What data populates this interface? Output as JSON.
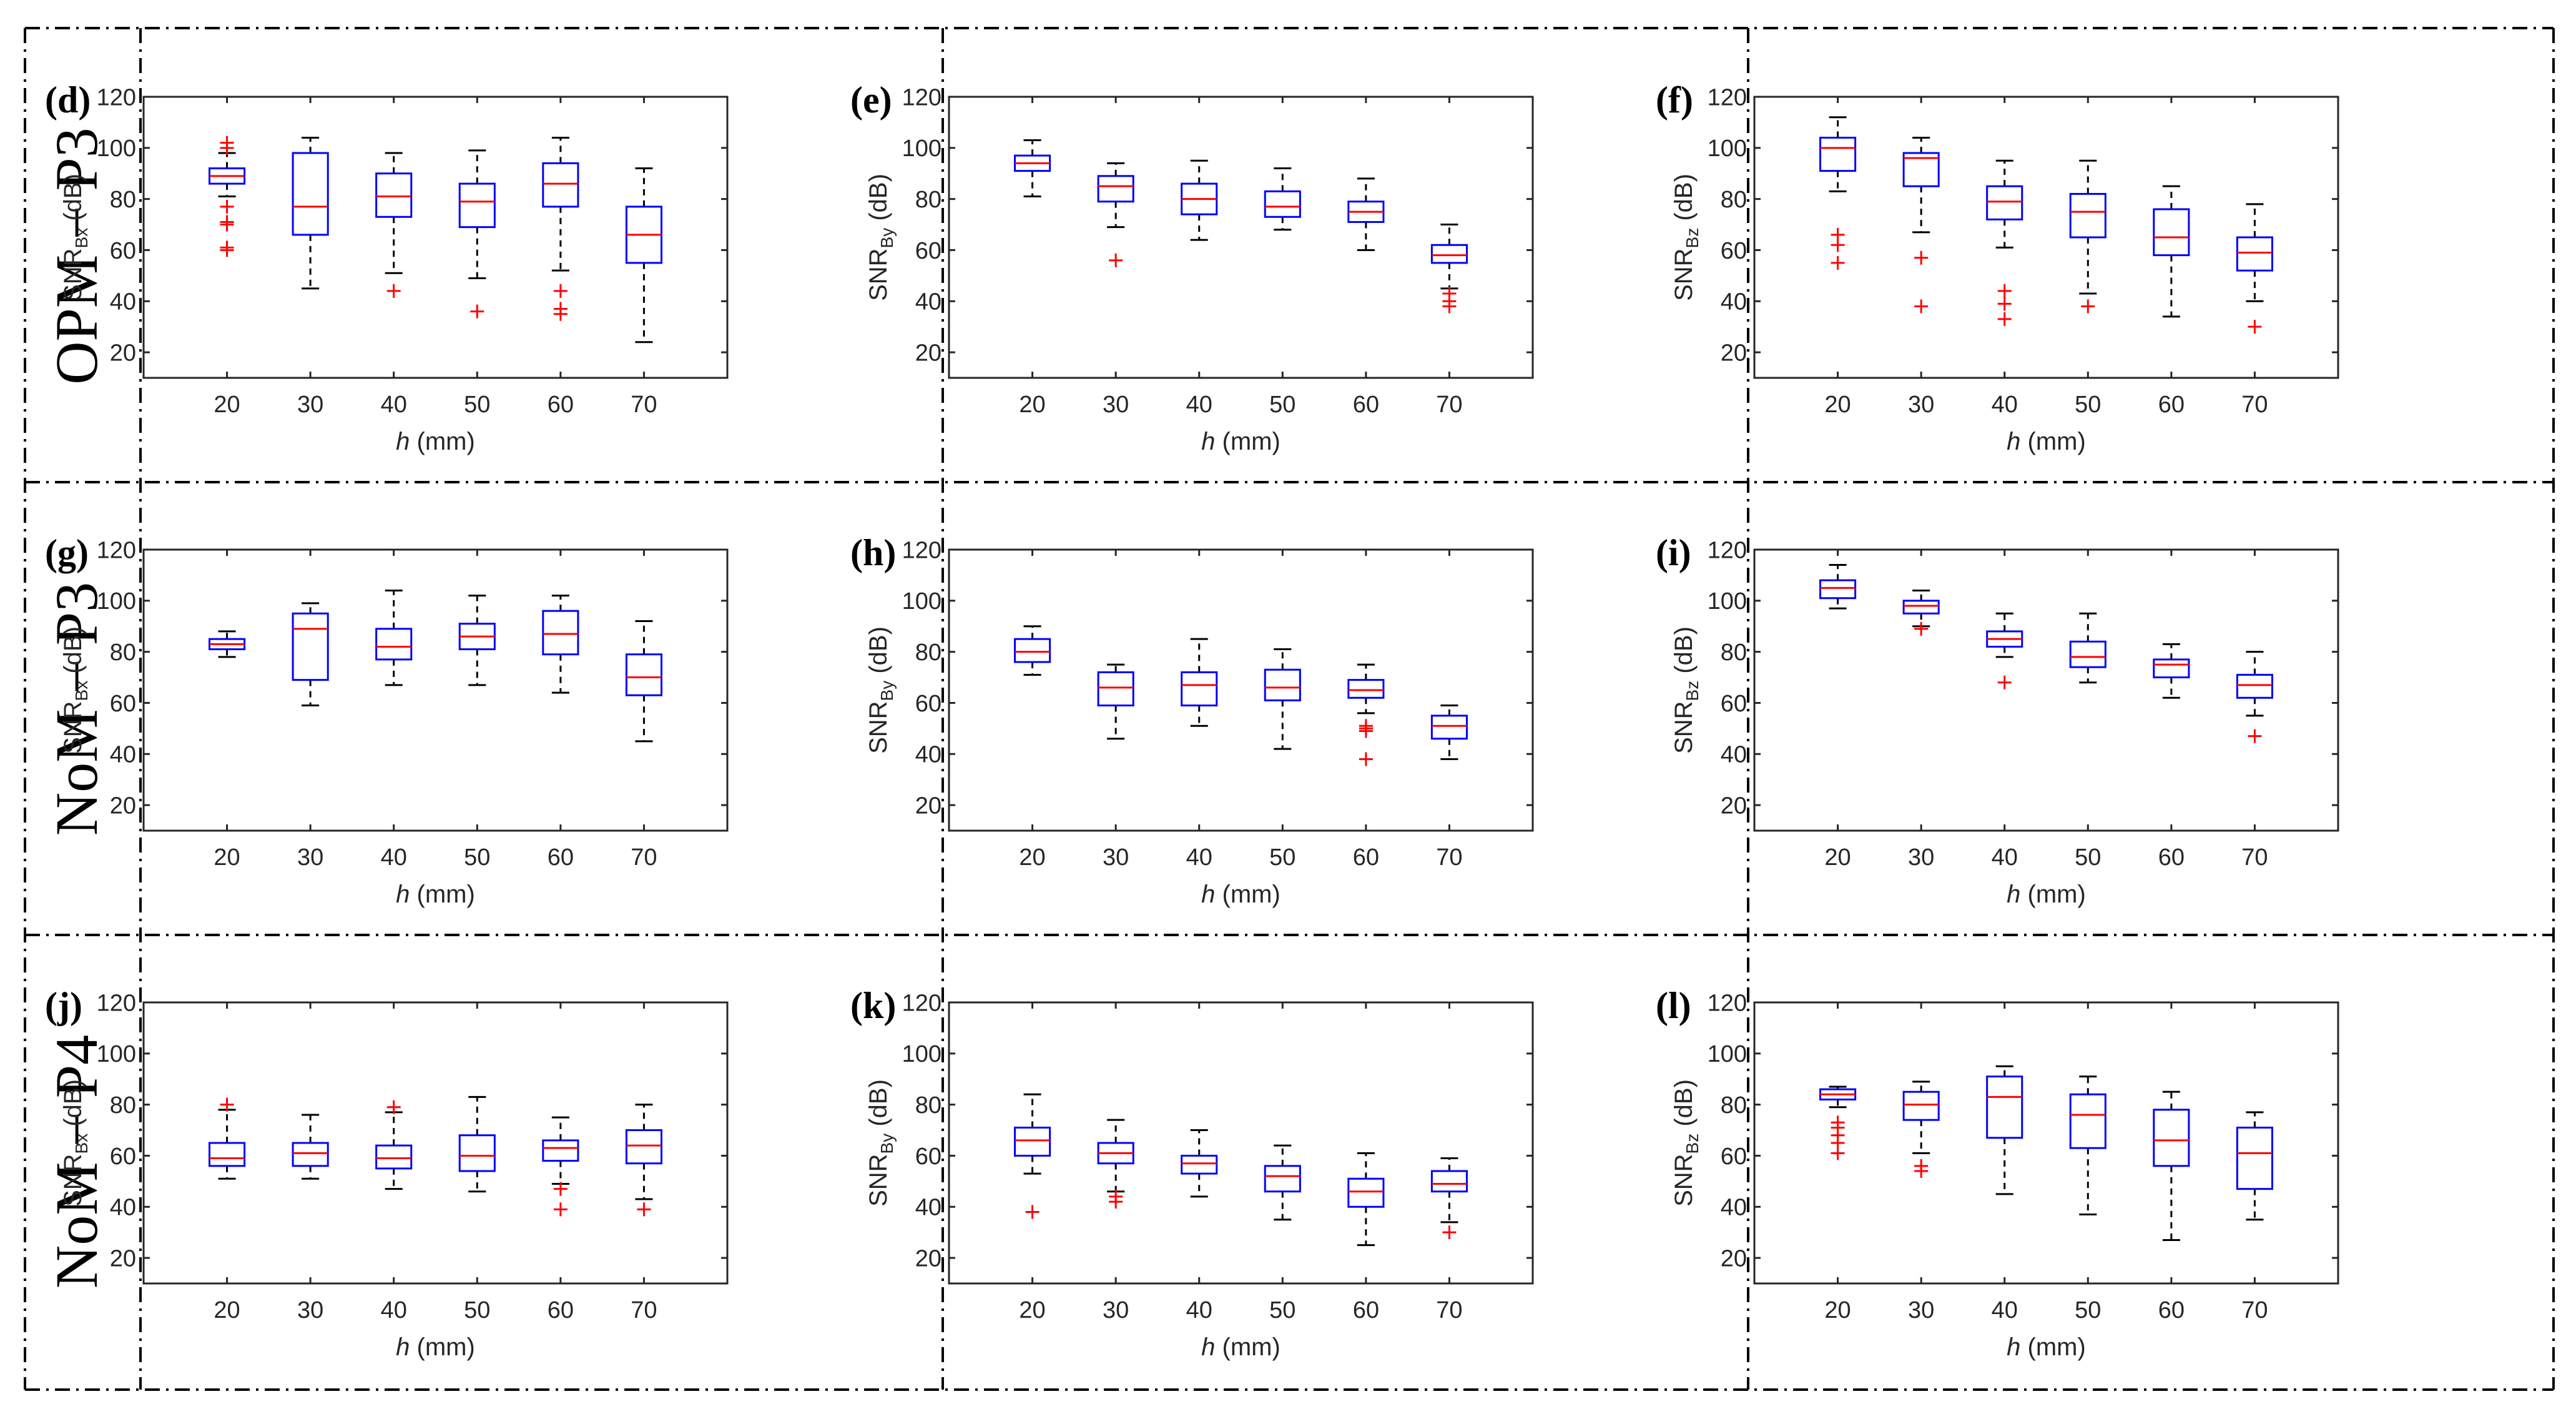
{
  "figure": {
    "rows": [
      {
        "label": "OPM − P3",
        "panels": [
          "d",
          "e",
          "f"
        ]
      },
      {
        "label": "NoM − P3",
        "panels": [
          "g",
          "h",
          "i"
        ]
      },
      {
        "label": "NoM − P4",
        "panels": [
          "j",
          "k",
          "l"
        ]
      }
    ],
    "colors": {
      "box": "#0000ff",
      "median": "#ff0000",
      "outlier": "#ff0000",
      "whisker": "#000000",
      "axis": "#262626",
      "frame": "#000000"
    }
  },
  "chart_data": [
    {
      "id": "d",
      "letter": "(d)",
      "type": "box",
      "ylabel_base": "SNR",
      "ylabel_sub": "Bx",
      "ylabel_unit": "(dB)",
      "xlabel_italic": "h",
      "xlabel_unit": "(mm)",
      "categories": [
        "20",
        "30",
        "40",
        "50",
        "60",
        "70"
      ],
      "ylim": [
        10,
        120
      ],
      "yticks": [
        20,
        40,
        60,
        80,
        100,
        120
      ],
      "boxes": [
        {
          "q1": 86,
          "median": 89,
          "q3": 92,
          "whisker_low": 81,
          "whisker_high": 98,
          "outliers": [
            60,
            61,
            70,
            71,
            77,
            100,
            102
          ]
        },
        {
          "q1": 66,
          "median": 77,
          "q3": 98,
          "whisker_low": 45,
          "whisker_high": 104,
          "outliers": []
        },
        {
          "q1": 73,
          "median": 81,
          "q3": 90,
          "whisker_low": 51,
          "whisker_high": 98,
          "outliers": [
            44
          ]
        },
        {
          "q1": 69,
          "median": 79,
          "q3": 86,
          "whisker_low": 49,
          "whisker_high": 99,
          "outliers": [
            36
          ]
        },
        {
          "q1": 77,
          "median": 86,
          "q3": 94,
          "whisker_low": 52,
          "whisker_high": 104,
          "outliers": [
            35,
            37,
            44
          ]
        },
        {
          "q1": 55,
          "median": 66,
          "q3": 77,
          "whisker_low": 24,
          "whisker_high": 92,
          "outliers": []
        }
      ]
    },
    {
      "id": "e",
      "letter": "(e)",
      "type": "box",
      "ylabel_base": "SNR",
      "ylabel_sub": "By",
      "ylabel_unit": "(dB)",
      "xlabel_italic": "h",
      "xlabel_unit": "(mm)",
      "categories": [
        "20",
        "30",
        "40",
        "50",
        "60",
        "70"
      ],
      "ylim": [
        10,
        120
      ],
      "yticks": [
        20,
        40,
        60,
        80,
        100,
        120
      ],
      "boxes": [
        {
          "q1": 91,
          "median": 94,
          "q3": 97,
          "whisker_low": 81,
          "whisker_high": 103,
          "outliers": []
        },
        {
          "q1": 79,
          "median": 85,
          "q3": 89,
          "whisker_low": 69,
          "whisker_high": 94,
          "outliers": [
            56
          ]
        },
        {
          "q1": 74,
          "median": 80,
          "q3": 86,
          "whisker_low": 64,
          "whisker_high": 95,
          "outliers": []
        },
        {
          "q1": 73,
          "median": 77,
          "q3": 83,
          "whisker_low": 68,
          "whisker_high": 92,
          "outliers": []
        },
        {
          "q1": 71,
          "median": 75,
          "q3": 79,
          "whisker_low": 60,
          "whisker_high": 88,
          "outliers": []
        },
        {
          "q1": 55,
          "median": 58,
          "q3": 62,
          "whisker_low": 45,
          "whisker_high": 70,
          "outliers": [
            38,
            40,
            43
          ]
        }
      ]
    },
    {
      "id": "f",
      "letter": "(f)",
      "type": "box",
      "ylabel_base": "SNR",
      "ylabel_sub": "Bz",
      "ylabel_unit": "(dB)",
      "xlabel_italic": "h",
      "xlabel_unit": "(mm)",
      "categories": [
        "20",
        "30",
        "40",
        "50",
        "60",
        "70"
      ],
      "ylim": [
        10,
        120
      ],
      "yticks": [
        20,
        40,
        60,
        80,
        100,
        120
      ],
      "boxes": [
        {
          "q1": 91,
          "median": 100,
          "q3": 104,
          "whisker_low": 83,
          "whisker_high": 112,
          "outliers": [
            55,
            62,
            66
          ]
        },
        {
          "q1": 85,
          "median": 96,
          "q3": 98,
          "whisker_low": 67,
          "whisker_high": 104,
          "outliers": [
            38,
            57
          ]
        },
        {
          "q1": 72,
          "median": 79,
          "q3": 85,
          "whisker_low": 61,
          "whisker_high": 95,
          "outliers": [
            33,
            39,
            44
          ]
        },
        {
          "q1": 65,
          "median": 75,
          "q3": 82,
          "whisker_low": 43,
          "whisker_high": 95,
          "outliers": [
            38
          ]
        },
        {
          "q1": 58,
          "median": 65,
          "q3": 76,
          "whisker_low": 34,
          "whisker_high": 85,
          "outliers": []
        },
        {
          "q1": 52,
          "median": 59,
          "q3": 65,
          "whisker_low": 40,
          "whisker_high": 78,
          "outliers": [
            30
          ]
        }
      ]
    },
    {
      "id": "g",
      "letter": "(g)",
      "type": "box",
      "ylabel_base": "SNR",
      "ylabel_sub": "Bx",
      "ylabel_unit": "(dB)",
      "xlabel_italic": "h",
      "xlabel_unit": "(mm)",
      "categories": [
        "20",
        "30",
        "40",
        "50",
        "60",
        "70"
      ],
      "ylim": [
        10,
        120
      ],
      "yticks": [
        20,
        40,
        60,
        80,
        100,
        120
      ],
      "boxes": [
        {
          "q1": 81,
          "median": 83,
          "q3": 85,
          "whisker_low": 78,
          "whisker_high": 88,
          "outliers": []
        },
        {
          "q1": 69,
          "median": 89,
          "q3": 95,
          "whisker_low": 59,
          "whisker_high": 99,
          "outliers": []
        },
        {
          "q1": 77,
          "median": 82,
          "q3": 89,
          "whisker_low": 67,
          "whisker_high": 104,
          "outliers": []
        },
        {
          "q1": 81,
          "median": 86,
          "q3": 91,
          "whisker_low": 67,
          "whisker_high": 102,
          "outliers": []
        },
        {
          "q1": 79,
          "median": 87,
          "q3": 96,
          "whisker_low": 64,
          "whisker_high": 102,
          "outliers": []
        },
        {
          "q1": 63,
          "median": 70,
          "q3": 79,
          "whisker_low": 45,
          "whisker_high": 92,
          "outliers": []
        }
      ]
    },
    {
      "id": "h",
      "letter": "(h)",
      "type": "box",
      "ylabel_base": "SNR",
      "ylabel_sub": "By",
      "ylabel_unit": "(dB)",
      "xlabel_italic": "h",
      "xlabel_unit": "(mm)",
      "categories": [
        "20",
        "30",
        "40",
        "50",
        "60",
        "70"
      ],
      "ylim": [
        10,
        120
      ],
      "yticks": [
        20,
        40,
        60,
        80,
        100,
        120
      ],
      "boxes": [
        {
          "q1": 76,
          "median": 80,
          "q3": 85,
          "whisker_low": 71,
          "whisker_high": 90,
          "outliers": []
        },
        {
          "q1": 59,
          "median": 66,
          "q3": 72,
          "whisker_low": 46,
          "whisker_high": 75,
          "outliers": []
        },
        {
          "q1": 59,
          "median": 67,
          "q3": 72,
          "whisker_low": 51,
          "whisker_high": 85,
          "outliers": []
        },
        {
          "q1": 61,
          "median": 66,
          "q3": 73,
          "whisker_low": 42,
          "whisker_high": 81,
          "outliers": []
        },
        {
          "q1": 62,
          "median": 65,
          "q3": 69,
          "whisker_low": 56,
          "whisker_high": 75,
          "outliers": [
            38,
            49,
            50,
            51
          ]
        },
        {
          "q1": 46,
          "median": 51,
          "q3": 55,
          "whisker_low": 38,
          "whisker_high": 59,
          "outliers": []
        }
      ]
    },
    {
      "id": "i",
      "letter": "(i)",
      "type": "box",
      "ylabel_base": "SNR",
      "ylabel_sub": "Bz",
      "ylabel_unit": "(dB)",
      "xlabel_italic": "h",
      "xlabel_unit": "(mm)",
      "categories": [
        "20",
        "30",
        "40",
        "50",
        "60",
        "70"
      ],
      "ylim": [
        10,
        120
      ],
      "yticks": [
        20,
        40,
        60,
        80,
        100,
        120
      ],
      "boxes": [
        {
          "q1": 101,
          "median": 105,
          "q3": 108,
          "whisker_low": 97,
          "whisker_high": 114,
          "outliers": []
        },
        {
          "q1": 95,
          "median": 98,
          "q3": 100,
          "whisker_low": 90,
          "whisker_high": 104,
          "outliers": [
            89
          ]
        },
        {
          "q1": 82,
          "median": 85,
          "q3": 88,
          "whisker_low": 78,
          "whisker_high": 95,
          "outliers": [
            68
          ]
        },
        {
          "q1": 74,
          "median": 78,
          "q3": 84,
          "whisker_low": 68,
          "whisker_high": 95,
          "outliers": []
        },
        {
          "q1": 70,
          "median": 75,
          "q3": 77,
          "whisker_low": 62,
          "whisker_high": 83,
          "outliers": []
        },
        {
          "q1": 62,
          "median": 67,
          "q3": 71,
          "whisker_low": 55,
          "whisker_high": 80,
          "outliers": [
            47
          ]
        }
      ]
    },
    {
      "id": "j",
      "letter": "(j)",
      "type": "box",
      "ylabel_base": "SNR",
      "ylabel_sub": "Bx",
      "ylabel_unit": "(dB)",
      "xlabel_italic": "h",
      "xlabel_unit": "(mm)",
      "categories": [
        "20",
        "30",
        "40",
        "50",
        "60",
        "70"
      ],
      "ylim": [
        10,
        120
      ],
      "yticks": [
        20,
        40,
        60,
        80,
        100,
        120
      ],
      "boxes": [
        {
          "q1": 56,
          "median": 59,
          "q3": 65,
          "whisker_low": 51,
          "whisker_high": 78,
          "outliers": [
            80
          ]
        },
        {
          "q1": 56,
          "median": 61,
          "q3": 65,
          "whisker_low": 51,
          "whisker_high": 76,
          "outliers": []
        },
        {
          "q1": 55,
          "median": 59,
          "q3": 64,
          "whisker_low": 47,
          "whisker_high": 77,
          "outliers": [
            79
          ]
        },
        {
          "q1": 54,
          "median": 60,
          "q3": 68,
          "whisker_low": 46,
          "whisker_high": 83,
          "outliers": []
        },
        {
          "q1": 58,
          "median": 63,
          "q3": 66,
          "whisker_low": 49,
          "whisker_high": 75,
          "outliers": [
            39,
            47
          ]
        },
        {
          "q1": 57,
          "median": 64,
          "q3": 70,
          "whisker_low": 43,
          "whisker_high": 80,
          "outliers": [
            39
          ]
        }
      ]
    },
    {
      "id": "k",
      "letter": "(k)",
      "type": "box",
      "ylabel_base": "SNR",
      "ylabel_sub": "By",
      "ylabel_unit": "(dB)",
      "xlabel_italic": "h",
      "xlabel_unit": "(mm)",
      "categories": [
        "20",
        "30",
        "40",
        "50",
        "60",
        "70"
      ],
      "ylim": [
        10,
        120
      ],
      "yticks": [
        20,
        40,
        60,
        80,
        100,
        120
      ],
      "boxes": [
        {
          "q1": 60,
          "median": 66,
          "q3": 71,
          "whisker_low": 53,
          "whisker_high": 84,
          "outliers": [
            38
          ]
        },
        {
          "q1": 57,
          "median": 61,
          "q3": 65,
          "whisker_low": 46,
          "whisker_high": 74,
          "outliers": [
            42,
            44
          ]
        },
        {
          "q1": 53,
          "median": 57,
          "q3": 60,
          "whisker_low": 44,
          "whisker_high": 70,
          "outliers": []
        },
        {
          "q1": 46,
          "median": 52,
          "q3": 56,
          "whisker_low": 35,
          "whisker_high": 64,
          "outliers": []
        },
        {
          "q1": 40,
          "median": 46,
          "q3": 51,
          "whisker_low": 25,
          "whisker_high": 61,
          "outliers": []
        },
        {
          "q1": 46,
          "median": 49,
          "q3": 54,
          "whisker_low": 34,
          "whisker_high": 59,
          "outliers": [
            30
          ]
        }
      ]
    },
    {
      "id": "l",
      "letter": "(l)",
      "type": "box",
      "ylabel_base": "SNR",
      "ylabel_sub": "Bz",
      "ylabel_unit": "(dB)",
      "xlabel_italic": "h",
      "xlabel_unit": "(mm)",
      "categories": [
        "20",
        "30",
        "40",
        "50",
        "60",
        "70"
      ],
      "ylim": [
        10,
        120
      ],
      "yticks": [
        20,
        40,
        60,
        80,
        100,
        120
      ],
      "boxes": [
        {
          "q1": 82,
          "median": 84,
          "q3": 86,
          "whisker_low": 79,
          "whisker_high": 87,
          "outliers": [
            61,
            65,
            68,
            71,
            73
          ]
        },
        {
          "q1": 74,
          "median": 80,
          "q3": 85,
          "whisker_low": 61,
          "whisker_high": 89,
          "outliers": [
            54,
            56
          ]
        },
        {
          "q1": 67,
          "median": 83,
          "q3": 91,
          "whisker_low": 45,
          "whisker_high": 95,
          "outliers": []
        },
        {
          "q1": 63,
          "median": 76,
          "q3": 84,
          "whisker_low": 37,
          "whisker_high": 91,
          "outliers": []
        },
        {
          "q1": 56,
          "median": 66,
          "q3": 78,
          "whisker_low": 27,
          "whisker_high": 85,
          "outliers": []
        },
        {
          "q1": 47,
          "median": 61,
          "q3": 71,
          "whisker_low": 35,
          "whisker_high": 77,
          "outliers": []
        }
      ]
    }
  ]
}
